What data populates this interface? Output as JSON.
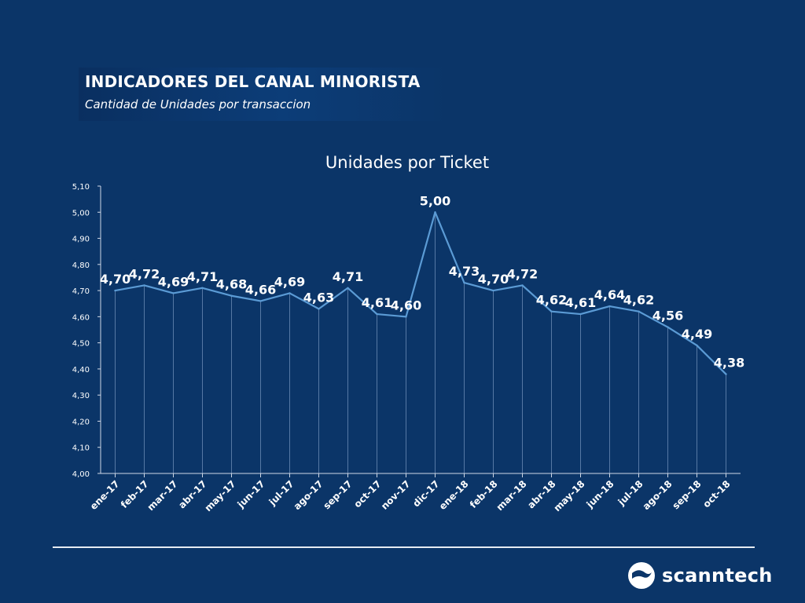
{
  "header": {
    "title": "INDICADORES DEL CANAL MINORISTA",
    "subtitle": "Cantidad de Unidades por transaccion"
  },
  "logo": {
    "text": "scanntech",
    "icon": "scanntech-logo-icon"
  },
  "colors": {
    "background": "#0b3568",
    "line": "#5b9bd5",
    "text": "#ffffff"
  },
  "chart_data": {
    "type": "line",
    "title": "Unidades por Ticket",
    "xlabel": "",
    "ylabel": "",
    "ylim": [
      4.0,
      5.1
    ],
    "yticks": [
      "4,00",
      "4,10",
      "4,20",
      "4,30",
      "4,40",
      "4,50",
      "4,60",
      "4,70",
      "4,80",
      "4,90",
      "5,00",
      "5,10"
    ],
    "grid": false,
    "legend": "none",
    "categories": [
      "ene-17",
      "feb-17",
      "mar-17",
      "abr-17",
      "may-17",
      "jun-17",
      "jul-17",
      "ago-17",
      "sep-17",
      "oct-17",
      "nov-17",
      "dic-17",
      "ene-18",
      "feb-18",
      "mar-18",
      "abr-18",
      "may-18",
      "jun-18",
      "jul-18",
      "ago-18",
      "sep-18",
      "oct-18"
    ],
    "series": [
      {
        "values": [
          4.7,
          4.72,
          4.69,
          4.71,
          4.68,
          4.66,
          4.69,
          4.63,
          4.71,
          4.61,
          4.6,
          5.0,
          4.73,
          4.7,
          4.72,
          4.62,
          4.61,
          4.64,
          4.62,
          4.56,
          4.49,
          4.38
        ],
        "labels": [
          "4,70",
          "4,72",
          "4,69",
          "4,71",
          "4,68",
          "4,66",
          "4,69",
          "4,63",
          "4,71",
          "4,61",
          "4,60",
          "5,00",
          "4,73",
          "4,70",
          "4,72",
          "4,62",
          "4,61",
          "4,64",
          "4,62",
          "4,56",
          "4,49",
          "4,38"
        ]
      }
    ]
  }
}
